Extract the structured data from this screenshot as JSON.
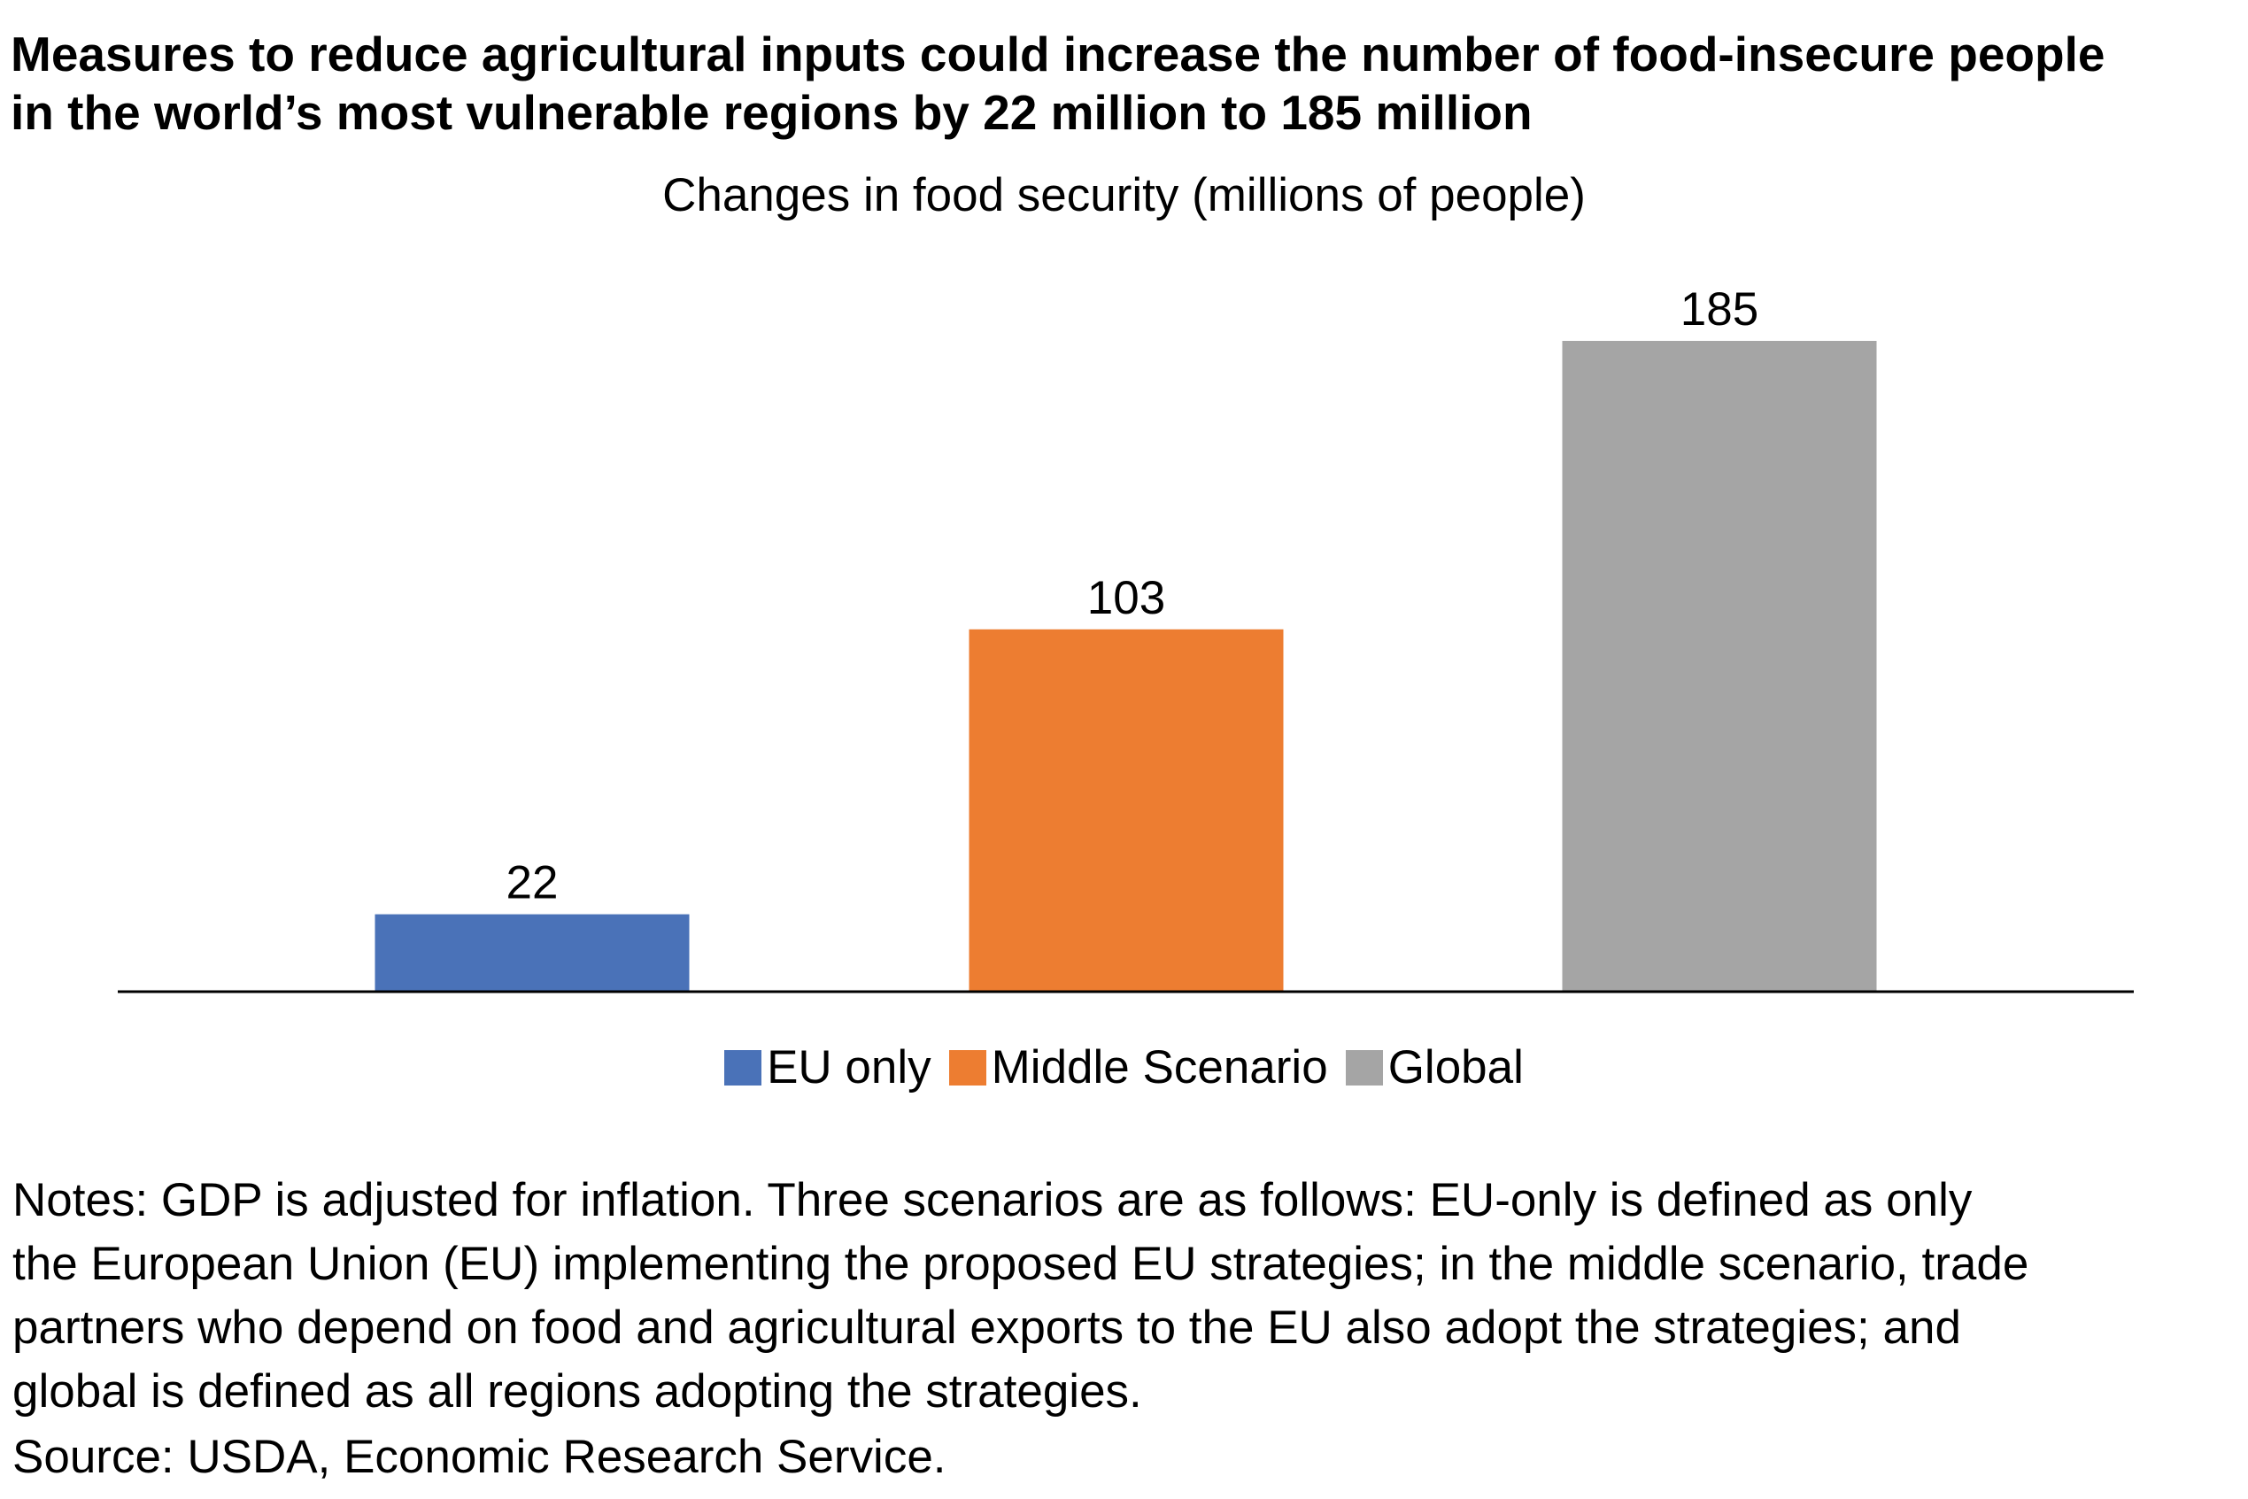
{
  "chart_title": {
    "line1": "Measures to reduce agricultural inputs could increase the number of food-insecure people",
    "line2": "in the world’s most vulnerable regions by 22 million to 185 million"
  },
  "subtitle": "Changes in food security (millions of people)",
  "notes": {
    "line1": "Notes: GDP is adjusted for inflation. Three scenarios are as follows: EU-only is defined as only",
    "line2": "the European Union (EU) implementing the proposed EU strategies; in the middle scenario, trade",
    "line3": "partners who depend on food and agricultural exports to the EU also adopt the strategies; and",
    "line4": "global is defined as all regions adopting the strategies."
  },
  "source": "Source: USDA, Economic Research Service.",
  "chart_data": {
    "type": "bar",
    "title": "Measures to reduce agricultural inputs could increase the number of food-insecure people in the world’s most vulnerable regions by 22 million to 185 million",
    "subtitle": "Changes in food security (millions of people)",
    "xlabel": "",
    "ylabel": "",
    "ylim": [
      0,
      185
    ],
    "grid": false,
    "legend_position": "bottom",
    "series": [
      {
        "name": "EU only",
        "values": [
          22
        ],
        "color": "#4A72B8"
      },
      {
        "name": "Middle Scenario",
        "values": [
          103
        ],
        "color": "#ED7D31"
      },
      {
        "name": "Global",
        "values": [
          185
        ],
        "color": "#A5A5A5"
      }
    ],
    "data_labels": [
      "22",
      "103",
      "185"
    ]
  }
}
